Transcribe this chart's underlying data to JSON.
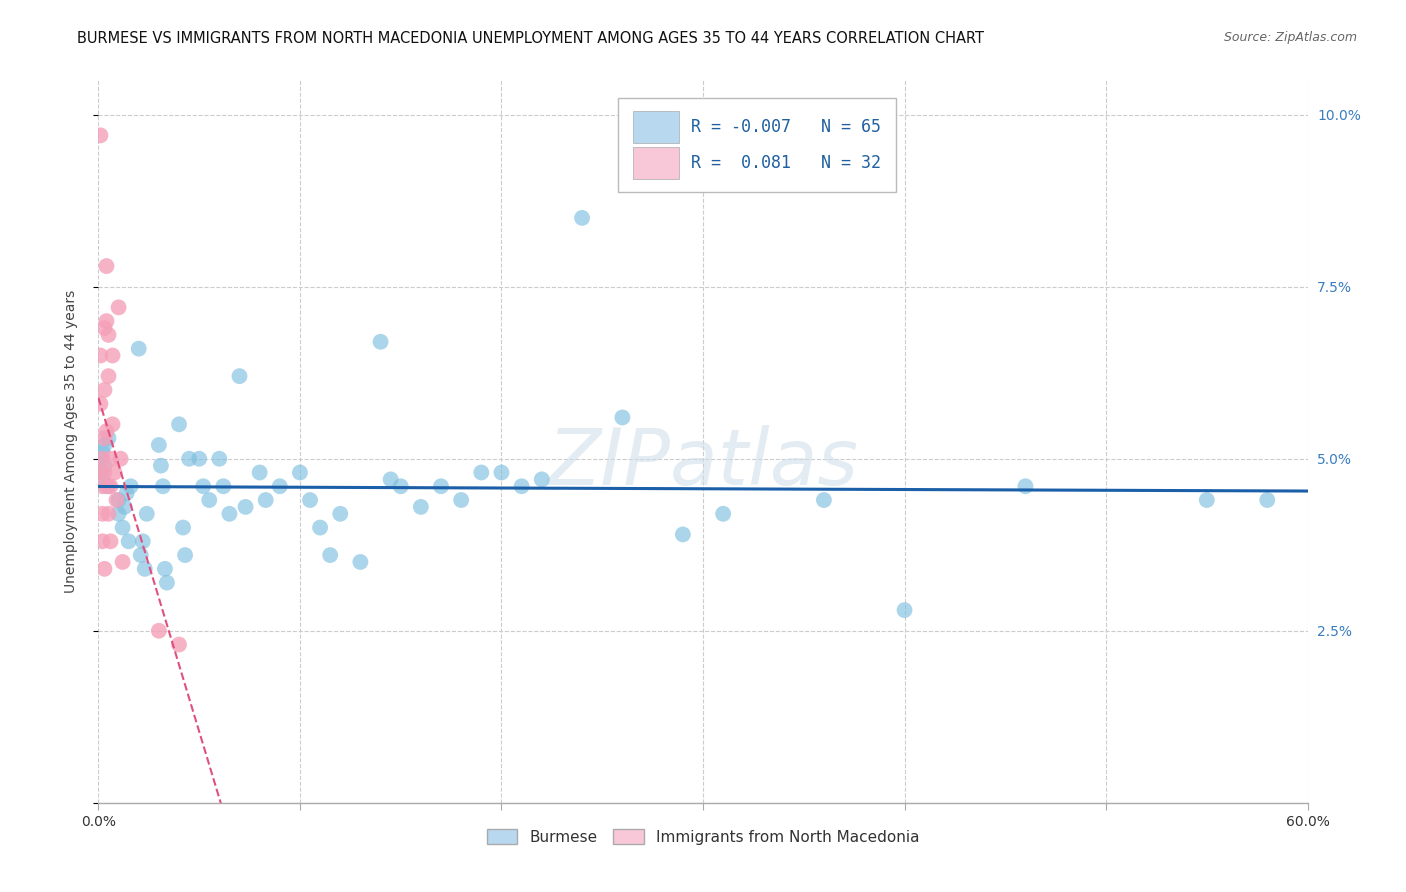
{
  "title": "BURMESE VS IMMIGRANTS FROM NORTH MACEDONIA UNEMPLOYMENT AMONG AGES 35 TO 44 YEARS CORRELATION CHART",
  "source": "Source: ZipAtlas.com",
  "ylabel": "Unemployment Among Ages 35 to 44 years",
  "watermark": "ZIPatlas",
  "xlim": [
    0.0,
    0.6
  ],
  "ylim": [
    0.0,
    0.105
  ],
  "xticks": [
    0.0,
    0.1,
    0.2,
    0.3,
    0.4,
    0.5,
    0.6
  ],
  "xticklabels": [
    "0.0%",
    "",
    "",
    "",
    "",
    "",
    "60.0%"
  ],
  "yticks": [
    0.0,
    0.025,
    0.05,
    0.075,
    0.1
  ],
  "yticklabels_left": [
    "",
    "",
    "",
    "",
    ""
  ],
  "yticklabels_right": [
    "",
    "2.5%",
    "5.0%",
    "7.5%",
    "10.0%"
  ],
  "R_burmese": -0.007,
  "N_burmese": 65,
  "R_macedonia": 0.081,
  "N_macedonia": 32,
  "color_burmese": "#7fbfdf",
  "color_macedonia": "#f4a0b8",
  "trendline_color_burmese": "#1a5fa8",
  "trendline_color_macedonia": "#e05080",
  "legend_box_color_burmese": "#b8d8f0",
  "legend_box_color_macedonia": "#f8c8d8",
  "burmese_x": [
    0.001,
    0.001,
    0.002,
    0.002,
    0.003,
    0.003,
    0.004,
    0.005,
    0.01,
    0.01,
    0.012,
    0.013,
    0.014,
    0.015,
    0.016,
    0.02,
    0.021,
    0.022,
    0.023,
    0.024,
    0.03,
    0.031,
    0.032,
    0.033,
    0.034,
    0.04,
    0.042,
    0.043,
    0.045,
    0.05,
    0.052,
    0.055,
    0.06,
    0.062,
    0.065,
    0.07,
    0.073,
    0.08,
    0.083,
    0.09,
    0.1,
    0.105,
    0.11,
    0.115,
    0.12,
    0.13,
    0.14,
    0.145,
    0.15,
    0.16,
    0.17,
    0.18,
    0.19,
    0.2,
    0.21,
    0.22,
    0.24,
    0.26,
    0.29,
    0.31,
    0.36,
    0.4,
    0.46,
    0.55,
    0.58
  ],
  "burmese_y": [
    0.05,
    0.048,
    0.047,
    0.051,
    0.049,
    0.052,
    0.046,
    0.053,
    0.042,
    0.044,
    0.04,
    0.043,
    0.045,
    0.038,
    0.046,
    0.066,
    0.036,
    0.038,
    0.034,
    0.042,
    0.052,
    0.049,
    0.046,
    0.034,
    0.032,
    0.055,
    0.04,
    0.036,
    0.05,
    0.05,
    0.046,
    0.044,
    0.05,
    0.046,
    0.042,
    0.062,
    0.043,
    0.048,
    0.044,
    0.046,
    0.048,
    0.044,
    0.04,
    0.036,
    0.042,
    0.035,
    0.067,
    0.047,
    0.046,
    0.043,
    0.046,
    0.044,
    0.048,
    0.048,
    0.046,
    0.047,
    0.085,
    0.056,
    0.039,
    0.042,
    0.044,
    0.028,
    0.046,
    0.044,
    0.044
  ],
  "macedonia_x": [
    0.001,
    0.001,
    0.001,
    0.001,
    0.002,
    0.002,
    0.002,
    0.002,
    0.003,
    0.003,
    0.003,
    0.003,
    0.003,
    0.004,
    0.004,
    0.004,
    0.005,
    0.005,
    0.005,
    0.005,
    0.006,
    0.006,
    0.006,
    0.007,
    0.007,
    0.008,
    0.009,
    0.01,
    0.011,
    0.012,
    0.03,
    0.04
  ],
  "macedonia_y": [
    0.097,
    0.065,
    0.058,
    0.048,
    0.05,
    0.046,
    0.042,
    0.038,
    0.069,
    0.06,
    0.053,
    0.048,
    0.034,
    0.078,
    0.07,
    0.054,
    0.068,
    0.062,
    0.046,
    0.042,
    0.05,
    0.046,
    0.038,
    0.065,
    0.055,
    0.048,
    0.044,
    0.072,
    0.05,
    0.035,
    0.025,
    0.023
  ],
  "grid_color": "#cccccc",
  "background_color": "#ffffff",
  "title_fontsize": 10.5,
  "axis_label_fontsize": 10,
  "tick_fontsize": 10,
  "legend_fontsize": 12
}
